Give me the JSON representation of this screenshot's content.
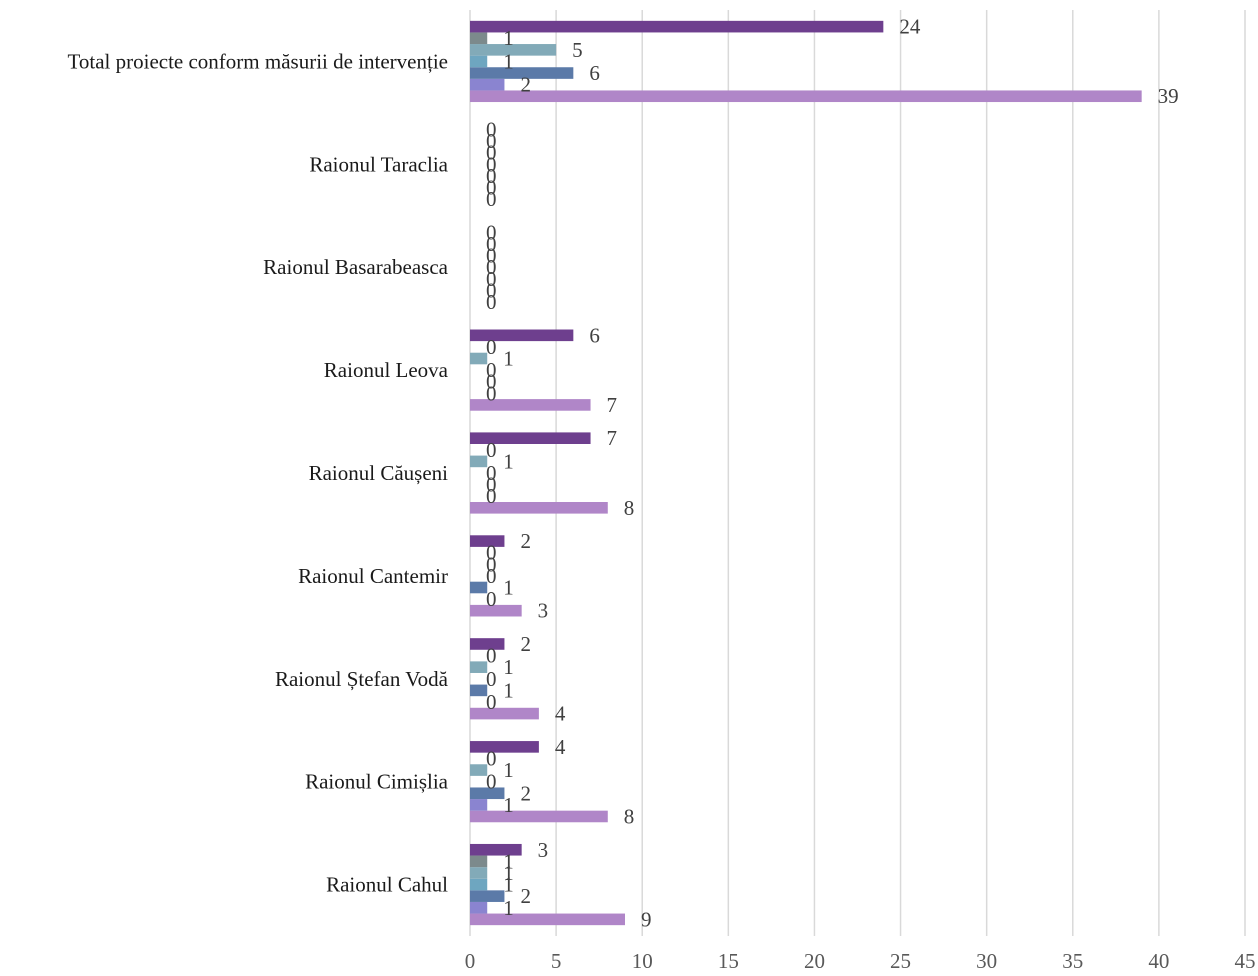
{
  "chart_data": {
    "type": "bar",
    "orientation": "horizontal",
    "categories": [
      "Raionul Cahul",
      "Raionul Cimișlia",
      "Raionul Ștefan Vodă",
      "Raionul Cantemir",
      "Raionul Căușeni",
      "Raionul Leova",
      "Raionul Basarabeasca",
      "Raionul Taraclia",
      "Total proiecte conform măsurii de intervenție"
    ],
    "series": [
      {
        "color": "#b086c8",
        "values": [
          9,
          8,
          4,
          3,
          8,
          7,
          0,
          0,
          39
        ]
      },
      {
        "color": "#8a84d0",
        "values": [
          1,
          1,
          0,
          0,
          0,
          0,
          0,
          0,
          2
        ]
      },
      {
        "color": "#5b7aa8",
        "values": [
          2,
          2,
          1,
          1,
          0,
          0,
          0,
          0,
          6
        ]
      },
      {
        "color": "#6ea6c0",
        "values": [
          1,
          0,
          0,
          0,
          0,
          0,
          0,
          0,
          1
        ]
      },
      {
        "color": "#82aab8",
        "values": [
          1,
          1,
          1,
          0,
          1,
          1,
          0,
          0,
          5
        ]
      },
      {
        "color": "#7c8a8c",
        "values": [
          1,
          0,
          0,
          0,
          0,
          0,
          0,
          0,
          1
        ]
      },
      {
        "color": "#6e3f8e",
        "values": [
          3,
          4,
          2,
          2,
          7,
          6,
          0,
          0,
          24
        ]
      }
    ],
    "xlim": [
      0,
      45
    ],
    "xticks": [
      0,
      5,
      10,
      15,
      20,
      25,
      30,
      35,
      40,
      45
    ],
    "grid": true,
    "legend": "none",
    "data_labels": true
  }
}
